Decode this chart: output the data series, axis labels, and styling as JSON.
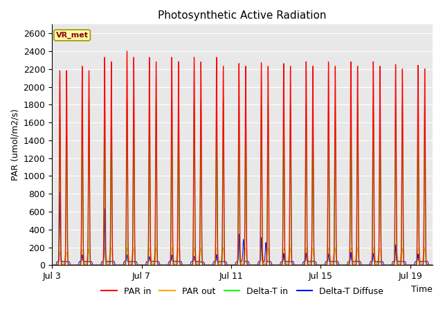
{
  "title": "Photosynthetic Active Radiation",
  "ylabel": "PAR (umol/m2/s)",
  "xlabel": "Time",
  "annotation_label": "VR_met",
  "ylim": [
    0,
    2700
  ],
  "yticks": [
    0,
    200,
    400,
    600,
    800,
    1000,
    1200,
    1400,
    1600,
    1800,
    2000,
    2200,
    2400,
    2600
  ],
  "xtick_labels": [
    "Jul 3",
    "Jul 7",
    "Jul 11",
    "Jul 15",
    "Jul 19"
  ],
  "xtick_positions": [
    0,
    4,
    8,
    12,
    16
  ],
  "n_days": 18,
  "colors": {
    "par_in": "#FF0000",
    "par_out": "#FFA500",
    "delta_t_in": "#00FF00",
    "delta_t_diffuse": "#0000FF"
  },
  "bg_plot": "#E8E8E8",
  "bg_fig": "#FFFFFF",
  "grid_color": "#FFFFFF",
  "legend_labels": [
    "PAR in",
    "PAR out",
    "Delta-T in",
    "Delta-T Diffuse"
  ],
  "title_fontsize": 11,
  "axis_label_fontsize": 9,
  "tick_fontsize": 9,
  "par_in_peaks": [
    2200,
    2250,
    2350,
    2420,
    2350,
    2350,
    2350,
    2350,
    2280,
    2290,
    2280,
    2300,
    2300,
    2300,
    2300,
    2270,
    2260,
    2260
  ],
  "par_in_peaks2": [
    2200,
    2200,
    2300,
    2350,
    2300,
    2300,
    2300,
    2250,
    2250,
    2250,
    2250,
    2250,
    2250,
    2250,
    2250,
    2220,
    2220,
    2280
  ],
  "delta_t_in_peaks": [
    1650,
    1850,
    1850,
    1850,
    1850,
    1850,
    1850,
    1850,
    1800,
    1800,
    1800,
    1800,
    1800,
    1800,
    1800,
    1800,
    1800,
    1850
  ],
  "par_out_peaks": [
    150,
    180,
    195,
    195,
    195,
    195,
    195,
    195,
    195,
    195,
    195,
    195,
    195,
    195,
    195,
    195,
    195,
    195
  ],
  "delta_t_diffuse_peaks": [
    800,
    80,
    600,
    80,
    60,
    80,
    60,
    80,
    310,
    270,
    90,
    100,
    90,
    100,
    90,
    190,
    90,
    50
  ]
}
